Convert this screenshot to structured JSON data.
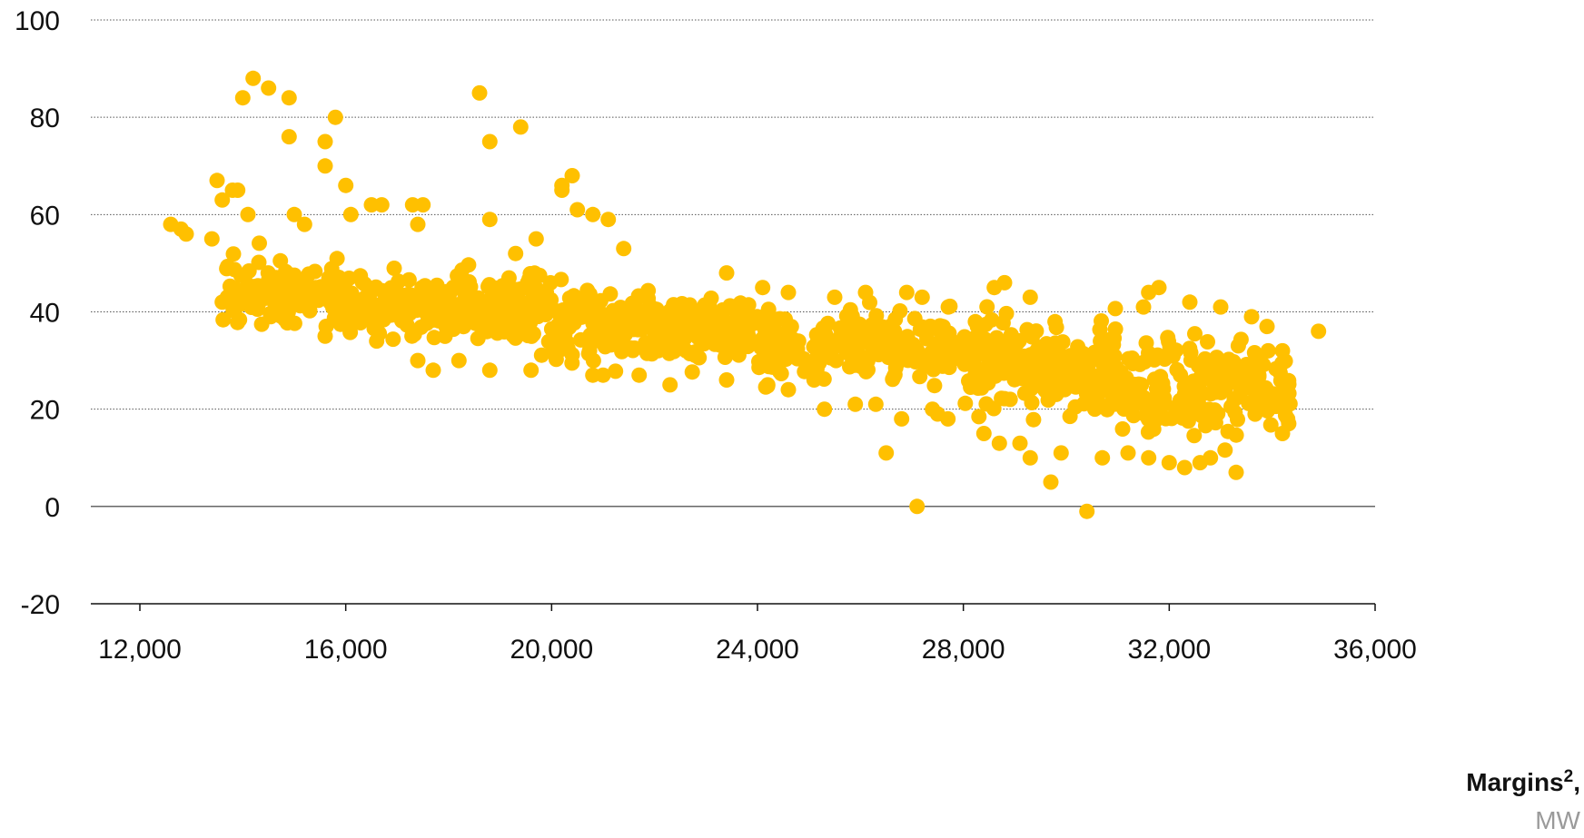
{
  "chart_data": {
    "type": "scatter",
    "xlabel": "Margins",
    "xlabel_superscript": "2",
    "xlabel_suffix": ",",
    "xunit": "MW",
    "xlim": [
      11000,
      36000
    ],
    "ylim": [
      -20,
      100
    ],
    "xticks": [
      12000,
      16000,
      20000,
      24000,
      28000,
      32000,
      36000
    ],
    "xtick_labels": [
      "12,000",
      "16,000",
      "20,000",
      "24,000",
      "28,000",
      "32,000",
      "36,000"
    ],
    "yticks": [
      100,
      80,
      60,
      40,
      20,
      0,
      -20
    ],
    "ytick_labels": [
      "100",
      "80",
      "60",
      "40",
      "20",
      "0",
      "-20"
    ],
    "grid": "horizontal dotted",
    "point_color": "#FFC000",
    "outliers": [
      [
        12600,
        58
      ],
      [
        12800,
        57
      ],
      [
        12900,
        56
      ],
      [
        13400,
        55
      ],
      [
        13500,
        67
      ],
      [
        13600,
        63
      ],
      [
        13800,
        65
      ],
      [
        13900,
        65
      ],
      [
        14000,
        84
      ],
      [
        14100,
        60
      ],
      [
        14200,
        88
      ],
      [
        14500,
        86
      ],
      [
        14900,
        76
      ],
      [
        14900,
        84
      ],
      [
        15000,
        60
      ],
      [
        15200,
        58
      ],
      [
        15600,
        75
      ],
      [
        15600,
        70
      ],
      [
        15800,
        80
      ],
      [
        16100,
        60
      ],
      [
        16000,
        66
      ],
      [
        16500,
        62
      ],
      [
        16700,
        62
      ],
      [
        17300,
        62
      ],
      [
        17400,
        58
      ],
      [
        17500,
        62
      ],
      [
        18600,
        85
      ],
      [
        18800,
        59
      ],
      [
        18800,
        75
      ],
      [
        19400,
        78
      ],
      [
        19300,
        52
      ],
      [
        19700,
        55
      ],
      [
        20200,
        65
      ],
      [
        20200,
        66
      ],
      [
        20400,
        68
      ],
      [
        20500,
        61
      ],
      [
        20800,
        60
      ],
      [
        21100,
        59
      ],
      [
        21400,
        53
      ],
      [
        13600,
        42
      ],
      [
        13700,
        43
      ],
      [
        14000,
        42
      ],
      [
        15600,
        35
      ],
      [
        16600,
        34
      ],
      [
        17400,
        30
      ],
      [
        17700,
        28
      ],
      [
        18200,
        30
      ],
      [
        18800,
        28
      ],
      [
        19600,
        28
      ],
      [
        20800,
        27
      ],
      [
        21000,
        27
      ],
      [
        21700,
        27
      ],
      [
        22300,
        25
      ],
      [
        23400,
        26
      ],
      [
        24200,
        25
      ],
      [
        24600,
        24
      ],
      [
        25100,
        26
      ],
      [
        25300,
        20
      ],
      [
        25900,
        21
      ],
      [
        26300,
        21
      ],
      [
        26500,
        11
      ],
      [
        27100,
        0
      ],
      [
        27500,
        19
      ],
      [
        27700,
        18
      ],
      [
        28400,
        15
      ],
      [
        28700,
        13
      ],
      [
        29100,
        13
      ],
      [
        29300,
        10
      ],
      [
        29700,
        5
      ],
      [
        29900,
        11
      ],
      [
        30400,
        -1
      ],
      [
        30700,
        10
      ],
      [
        31200,
        11
      ],
      [
        31600,
        10
      ],
      [
        31800,
        45
      ],
      [
        32000,
        9
      ],
      [
        32300,
        8
      ],
      [
        32600,
        9
      ],
      [
        32800,
        10
      ],
      [
        33300,
        7
      ],
      [
        34200,
        15
      ],
      [
        34300,
        18
      ],
      [
        34200,
        32
      ],
      [
        34900,
        36
      ],
      [
        33900,
        37
      ],
      [
        33600,
        39
      ],
      [
        33000,
        41
      ],
      [
        32400,
        42
      ],
      [
        31600,
        44
      ],
      [
        31500,
        41
      ],
      [
        28600,
        45
      ],
      [
        28800,
        46
      ],
      [
        26100,
        44
      ],
      [
        26900,
        44
      ],
      [
        27200,
        43
      ],
      [
        29300,
        43
      ],
      [
        23400,
        48
      ],
      [
        24100,
        45
      ],
      [
        24600,
        44
      ],
      [
        25500,
        43
      ],
      [
        26800,
        18
      ],
      [
        27400,
        20
      ]
    ],
    "bands": [
      {
        "x_range": [
          13600,
          16000
        ],
        "y_center": 44,
        "y_spread": 6,
        "count": 110
      },
      {
        "x_range": [
          16000,
          20000
        ],
        "y_center": 41,
        "y_spread": 6,
        "count": 260
      },
      {
        "x_range": [
          20000,
          24000
        ],
        "y_center": 37,
        "y_spread": 6,
        "count": 260
      },
      {
        "x_range": [
          24000,
          28000
        ],
        "y_center": 33,
        "y_spread": 6,
        "count": 200
      },
      {
        "x_range": [
          28000,
          31000
        ],
        "y_center": 29,
        "y_spread": 8,
        "count": 230
      },
      {
        "x_range": [
          31000,
          34400
        ],
        "y_center": 25,
        "y_spread": 8,
        "count": 200
      }
    ]
  }
}
